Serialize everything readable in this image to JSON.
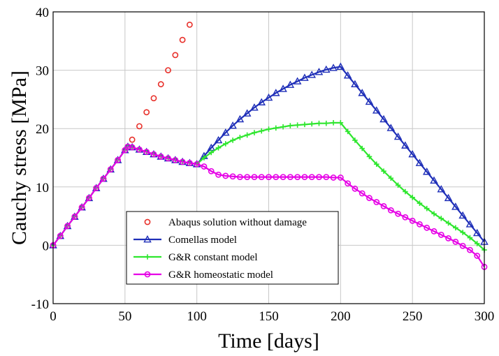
{
  "chart_data": {
    "type": "line",
    "xlabel": "Time [days]",
    "ylabel": "Cauchy stress [MPa]",
    "xlim": [
      0,
      300
    ],
    "ylim": [
      -10,
      40
    ],
    "xticks": [
      "0",
      "50",
      "100",
      "150",
      "200",
      "250",
      "300"
    ],
    "yticks": [
      "-10",
      "0",
      "10",
      "20",
      "30",
      "40"
    ],
    "grid": true,
    "legend_position": "bottom-center",
    "series": [
      {
        "name": "Abaqus solution without damage",
        "style": "markers",
        "marker": "circle",
        "color": "#e8302a",
        "points": [
          [
            0,
            0
          ],
          [
            5,
            1.6
          ],
          [
            10,
            3.3
          ],
          [
            15,
            4.9
          ],
          [
            20,
            6.5
          ],
          [
            25,
            8.1
          ],
          [
            30,
            9.8
          ],
          [
            35,
            11.4
          ],
          [
            40,
            13
          ],
          [
            45,
            14.6
          ],
          [
            50,
            16.3
          ],
          [
            52,
            16.9
          ],
          [
            55,
            18.1
          ],
          [
            60,
            20.4
          ],
          [
            65,
            22.8
          ],
          [
            70,
            25.2
          ],
          [
            75,
            27.6
          ],
          [
            80,
            30
          ],
          [
            85,
            32.6
          ],
          [
            90,
            35.2
          ],
          [
            95,
            37.8
          ]
        ]
      },
      {
        "name": "Comellas model",
        "style": "line+markers",
        "marker": "triangle",
        "color": "#1f2fb8",
        "points": [
          [
            0,
            0
          ],
          [
            5,
            1.6
          ],
          [
            10,
            3.3
          ],
          [
            15,
            4.9
          ],
          [
            20,
            6.5
          ],
          [
            25,
            8.1
          ],
          [
            30,
            9.8
          ],
          [
            35,
            11.4
          ],
          [
            40,
            13
          ],
          [
            45,
            14.6
          ],
          [
            50,
            16.3
          ],
          [
            52,
            16.9
          ],
          [
            55,
            16.8
          ],
          [
            60,
            16.4
          ],
          [
            65,
            16
          ],
          [
            70,
            15.6
          ],
          [
            75,
            15.2
          ],
          [
            80,
            14.9
          ],
          [
            85,
            14.6
          ],
          [
            90,
            14.3
          ],
          [
            95,
            14.1
          ],
          [
            100,
            13.9
          ],
          [
            105,
            15.3
          ],
          [
            110,
            16.7
          ],
          [
            115,
            18
          ],
          [
            120,
            19.3
          ],
          [
            125,
            20.5
          ],
          [
            130,
            21.6
          ],
          [
            135,
            22.6
          ],
          [
            140,
            23.6
          ],
          [
            145,
            24.5
          ],
          [
            150,
            25.3
          ],
          [
            155,
            26.1
          ],
          [
            160,
            26.8
          ],
          [
            165,
            27.5
          ],
          [
            170,
            28.1
          ],
          [
            175,
            28.7
          ],
          [
            180,
            29.2
          ],
          [
            185,
            29.7
          ],
          [
            190,
            30.1
          ],
          [
            195,
            30.4
          ],
          [
            200,
            30.6
          ],
          [
            205,
            29.1
          ],
          [
            210,
            27.6
          ],
          [
            215,
            26.1
          ],
          [
            220,
            24.6
          ],
          [
            225,
            23.1
          ],
          [
            230,
            21.6
          ],
          [
            235,
            20.1
          ],
          [
            240,
            18.6
          ],
          [
            245,
            17.1
          ],
          [
            250,
            15.6
          ],
          [
            255,
            14.1
          ],
          [
            260,
            12.6
          ],
          [
            265,
            11.1
          ],
          [
            270,
            9.6
          ],
          [
            275,
            8.1
          ],
          [
            280,
            6.6
          ],
          [
            285,
            5.1
          ],
          [
            290,
            3.6
          ],
          [
            295,
            2.1
          ],
          [
            300,
            0.6
          ]
        ]
      },
      {
        "name": "G&R constant model",
        "style": "line+markers",
        "marker": "plus",
        "color": "#2ee62e",
        "points": [
          [
            0,
            0
          ],
          [
            5,
            1.6
          ],
          [
            10,
            3.3
          ],
          [
            15,
            4.9
          ],
          [
            20,
            6.5
          ],
          [
            25,
            8.1
          ],
          [
            30,
            9.8
          ],
          [
            35,
            11.4
          ],
          [
            40,
            13
          ],
          [
            45,
            14.6
          ],
          [
            50,
            16.3
          ],
          [
            52,
            16.9
          ],
          [
            55,
            16.8
          ],
          [
            60,
            16.4
          ],
          [
            65,
            16
          ],
          [
            70,
            15.6
          ],
          [
            75,
            15.2
          ],
          [
            80,
            14.9
          ],
          [
            85,
            14.6
          ],
          [
            90,
            14.3
          ],
          [
            95,
            14.1
          ],
          [
            100,
            13.9
          ],
          [
            105,
            15
          ],
          [
            110,
            15.9
          ],
          [
            115,
            16.7
          ],
          [
            120,
            17.4
          ],
          [
            125,
            18
          ],
          [
            130,
            18.5
          ],
          [
            135,
            18.9
          ],
          [
            140,
            19.3
          ],
          [
            145,
            19.6
          ],
          [
            150,
            19.9
          ],
          [
            155,
            20.1
          ],
          [
            160,
            20.3
          ],
          [
            165,
            20.5
          ],
          [
            170,
            20.6
          ],
          [
            175,
            20.7
          ],
          [
            180,
            20.8
          ],
          [
            185,
            20.9
          ],
          [
            190,
            20.9
          ],
          [
            195,
            21
          ],
          [
            200,
            21
          ],
          [
            205,
            19.5
          ],
          [
            210,
            18
          ],
          [
            215,
            16.6
          ],
          [
            220,
            15.2
          ],
          [
            225,
            13.9
          ],
          [
            230,
            12.7
          ],
          [
            235,
            11.5
          ],
          [
            240,
            10.3
          ],
          [
            245,
            9.2
          ],
          [
            250,
            8.2
          ],
          [
            255,
            7.2
          ],
          [
            260,
            6.3
          ],
          [
            265,
            5.4
          ],
          [
            270,
            4.6
          ],
          [
            275,
            3.8
          ],
          [
            280,
            3
          ],
          [
            285,
            2.2
          ],
          [
            290,
            1.3
          ],
          [
            295,
            0.3
          ],
          [
            300,
            -0.8
          ]
        ]
      },
      {
        "name": "G&R homeostatic model",
        "style": "line+markers",
        "marker": "circle",
        "color": "#e600e6",
        "points": [
          [
            0,
            0
          ],
          [
            5,
            1.6
          ],
          [
            10,
            3.3
          ],
          [
            15,
            4.9
          ],
          [
            20,
            6.5
          ],
          [
            25,
            8.1
          ],
          [
            30,
            9.8
          ],
          [
            35,
            11.4
          ],
          [
            40,
            13
          ],
          [
            45,
            14.6
          ],
          [
            50,
            16.3
          ],
          [
            52,
            16.9
          ],
          [
            55,
            16.8
          ],
          [
            60,
            16.4
          ],
          [
            65,
            16
          ],
          [
            70,
            15.6
          ],
          [
            75,
            15.2
          ],
          [
            80,
            14.9
          ],
          [
            85,
            14.6
          ],
          [
            90,
            14.3
          ],
          [
            95,
            14.1
          ],
          [
            100,
            13.9
          ],
          [
            105,
            13.5
          ],
          [
            110,
            12.7
          ],
          [
            115,
            12.1
          ],
          [
            120,
            11.9
          ],
          [
            125,
            11.8
          ],
          [
            130,
            11.7
          ],
          [
            135,
            11.7
          ],
          [
            140,
            11.7
          ],
          [
            145,
            11.7
          ],
          [
            150,
            11.7
          ],
          [
            155,
            11.7
          ],
          [
            160,
            11.7
          ],
          [
            165,
            11.7
          ],
          [
            170,
            11.7
          ],
          [
            175,
            11.7
          ],
          [
            180,
            11.7
          ],
          [
            185,
            11.7
          ],
          [
            190,
            11.7
          ],
          [
            195,
            11.6
          ],
          [
            200,
            11.6
          ],
          [
            205,
            10.6
          ],
          [
            210,
            9.7
          ],
          [
            215,
            8.9
          ],
          [
            220,
            8.1
          ],
          [
            225,
            7.4
          ],
          [
            230,
            6.7
          ],
          [
            235,
            6
          ],
          [
            240,
            5.4
          ],
          [
            245,
            4.8
          ],
          [
            250,
            4.2
          ],
          [
            255,
            3.6
          ],
          [
            260,
            3
          ],
          [
            265,
            2.4
          ],
          [
            270,
            1.8
          ],
          [
            275,
            1.2
          ],
          [
            280,
            0.6
          ],
          [
            285,
            -0.1
          ],
          [
            290,
            -0.8
          ],
          [
            295,
            -1.8
          ],
          [
            300,
            -3.7
          ]
        ]
      }
    ]
  }
}
